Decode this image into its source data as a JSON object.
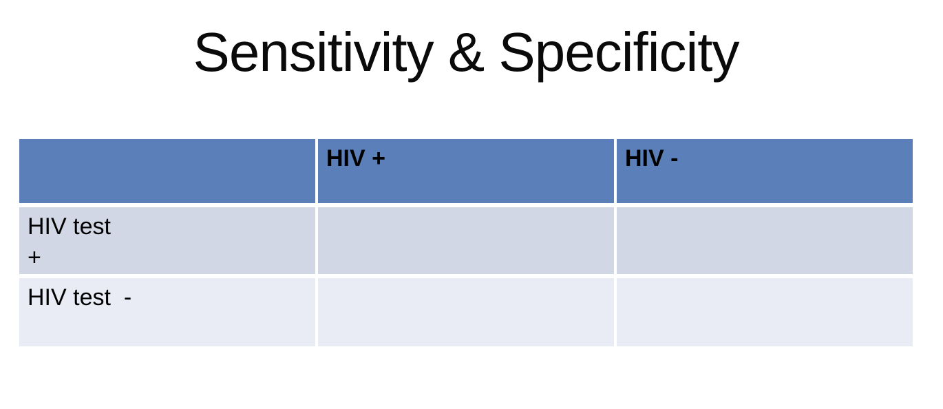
{
  "slide": {
    "title": "Sensitivity & Specificity"
  },
  "table": {
    "header": [
      "",
      "HIV +",
      "HIV -"
    ],
    "rows": [
      {
        "label": "HIV test\n+",
        "cells": [
          "",
          ""
        ]
      },
      {
        "label": "HIV test  -",
        "cells": [
          "",
          ""
        ]
      }
    ],
    "colors": {
      "header_bg": "#5b7fb8",
      "band_odd_bg": "#d2d7e5",
      "band_even_bg": "#e9ecf4",
      "header_text": "#000000",
      "body_text": "#000000",
      "background": "#ffffff"
    }
  }
}
